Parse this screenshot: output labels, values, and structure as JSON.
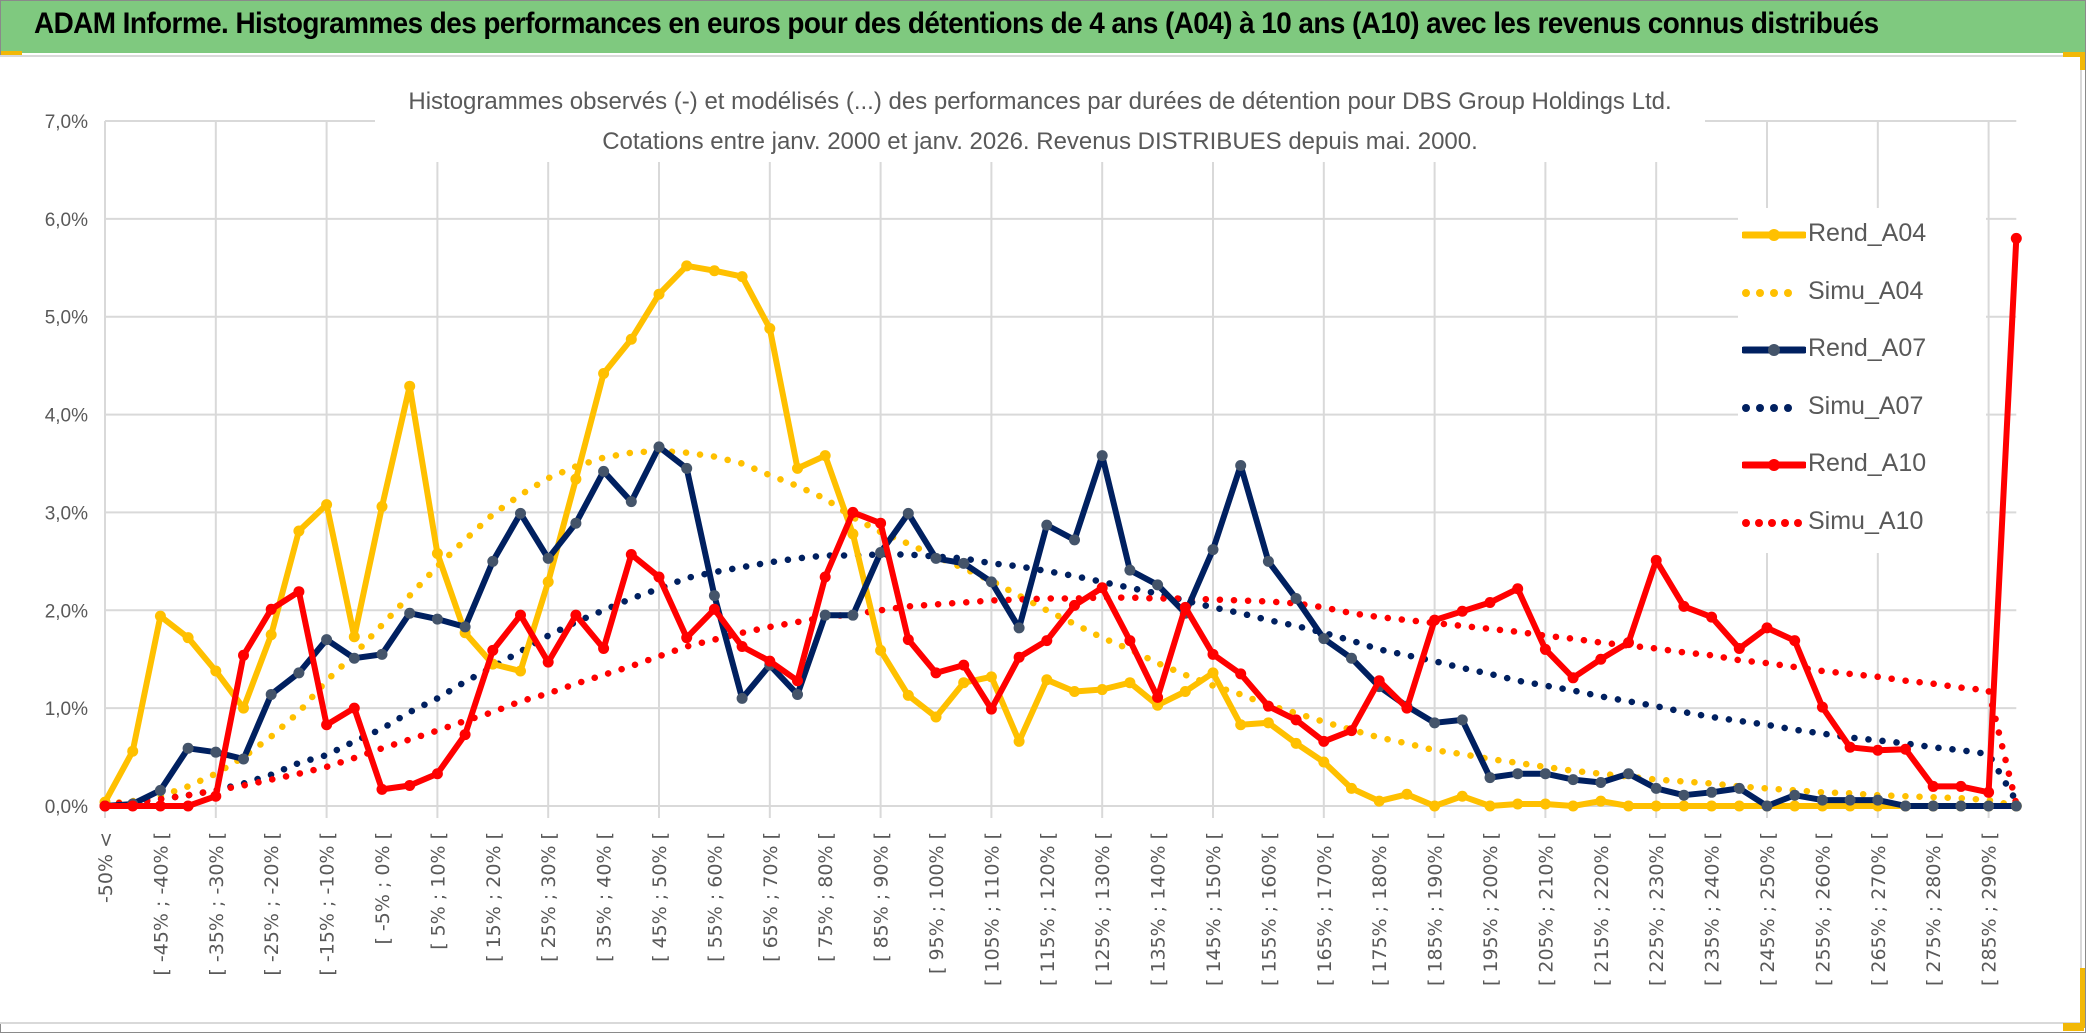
{
  "banner": {
    "title": "ADAM Informe. Histogrammes des performances en euros pour des détentions de 4 ans (A04) à 10 ans (A10) avec les revenus connus distribués"
  },
  "chart_data": {
    "type": "line",
    "title": "Histogrammes observés (-) et modélisés (...) des performances par durées de détention pour DBS Group Holdings Ltd.",
    "subtitle": "Cotations entre janv. 2000 et janv. 2026. Revenus DISTRIBUES depuis mai. 2000.",
    "xlabel": "",
    "ylabel": "",
    "ylim": [
      0,
      7
    ],
    "y_unit": "%",
    "y_ticks": [
      "0,0%",
      "1,0%",
      "2,0%",
      "3,0%",
      "4,0%",
      "5,0%",
      "6,0%",
      "7,0%"
    ],
    "grid": true,
    "legend_position": "right",
    "point_count": 70,
    "x_tick_labels": [
      {
        "index": 0,
        "label": "-50% <"
      },
      {
        "index": 2,
        "label": "[ -45% ; -40% ["
      },
      {
        "index": 4,
        "label": "[ -35% ; -30% ["
      },
      {
        "index": 6,
        "label": "[ -25% ; -20% ["
      },
      {
        "index": 8,
        "label": "[ -15% ; -10% ["
      },
      {
        "index": 10,
        "label": "[ -5% ; 0% ["
      },
      {
        "index": 12,
        "label": "[ 5% ; 10% ["
      },
      {
        "index": 14,
        "label": "[ 15% ; 20% ["
      },
      {
        "index": 16,
        "label": "[ 25% ; 30% ["
      },
      {
        "index": 18,
        "label": "[ 35% ; 40% ["
      },
      {
        "index": 20,
        "label": "[ 45% ; 50% ["
      },
      {
        "index": 22,
        "label": "[ 55% ; 60% ["
      },
      {
        "index": 24,
        "label": "[ 65% ; 70% ["
      },
      {
        "index": 26,
        "label": "[ 75% ; 80% ["
      },
      {
        "index": 28,
        "label": "[ 85% ; 90% ["
      },
      {
        "index": 30,
        "label": "[ 95% ; 100% ["
      },
      {
        "index": 32,
        "label": "[ 105% ; 110% ["
      },
      {
        "index": 34,
        "label": "[ 115% ; 120% ["
      },
      {
        "index": 36,
        "label": "[ 125% ; 130% ["
      },
      {
        "index": 38,
        "label": "[ 135% ; 140% ["
      },
      {
        "index": 40,
        "label": "[ 145% ; 150% ["
      },
      {
        "index": 42,
        "label": "[ 155% ; 160% ["
      },
      {
        "index": 44,
        "label": "[ 165% ; 170% ["
      },
      {
        "index": 46,
        "label": "[ 175% ; 180% ["
      },
      {
        "index": 48,
        "label": "[ 185% ; 190% ["
      },
      {
        "index": 50,
        "label": "[ 195% ; 200% ["
      },
      {
        "index": 52,
        "label": "[ 205% ; 210% ["
      },
      {
        "index": 54,
        "label": "[ 215% ; 220% ["
      },
      {
        "index": 56,
        "label": "[ 225% ; 230% ["
      },
      {
        "index": 58,
        "label": "[ 235% ; 240% ["
      },
      {
        "index": 60,
        "label": "[ 245% ; 250% ["
      },
      {
        "index": 62,
        "label": "[ 255% ; 260% ["
      },
      {
        "index": 64,
        "label": "[ 265% ; 270% ["
      },
      {
        "index": 66,
        "label": "[ 275% ; 280% ["
      },
      {
        "index": 68,
        "label": "[ 285% ; 290% ["
      }
    ],
    "series": [
      {
        "name": "Rend_A04",
        "style": "solid",
        "markers": true,
        "color": "#ffc000",
        "marker_color": "#ffc000",
        "values": [
          0.04,
          0.56,
          1.94,
          1.72,
          1.38,
          1.0,
          1.75,
          2.81,
          3.08,
          1.73,
          3.06,
          4.29,
          2.58,
          1.77,
          1.45,
          1.38,
          2.29,
          3.34,
          4.42,
          4.77,
          5.23,
          5.52,
          5.47,
          5.41,
          4.88,
          3.45,
          3.58,
          2.78,
          1.59,
          1.13,
          0.91,
          1.26,
          1.32,
          0.66,
          1.29,
          1.17,
          1.19,
          1.26,
          1.03,
          1.17,
          1.36,
          0.83,
          0.85,
          0.64,
          0.45,
          0.18,
          0.05,
          0.12,
          0.0,
          0.1,
          0.0,
          0.02,
          0.02,
          0.0,
          0.05,
          0.0,
          0.0,
          0.0,
          0.0,
          0.0,
          0.0,
          0.0,
          0.0,
          0.0,
          0.0,
          0.0,
          0.0,
          0.0,
          0.0,
          0.0
        ]
      },
      {
        "name": "Simu_A04",
        "style": "dotted",
        "markers": false,
        "color": "#ffc000",
        "values": [
          0.02,
          0.05,
          0.1,
          0.2,
          0.33,
          0.5,
          0.71,
          0.96,
          1.28,
          1.55,
          1.85,
          2.15,
          2.45,
          2.72,
          2.98,
          3.18,
          3.35,
          3.47,
          3.56,
          3.61,
          3.63,
          3.61,
          3.57,
          3.5,
          3.38,
          3.27,
          3.14,
          2.95,
          2.8,
          2.68,
          2.55,
          2.43,
          2.3,
          2.15,
          2.0,
          1.86,
          1.72,
          1.6,
          1.46,
          1.34,
          1.23,
          1.14,
          1.03,
          0.95,
          0.86,
          0.78,
          0.7,
          0.64,
          0.57,
          0.53,
          0.48,
          0.44,
          0.4,
          0.36,
          0.33,
          0.3,
          0.27,
          0.25,
          0.23,
          0.2,
          0.18,
          0.16,
          0.14,
          0.13,
          0.11,
          0.1,
          0.09,
          0.08,
          0.06,
          0.0
        ]
      },
      {
        "name": "Rend_A07",
        "style": "solid",
        "markers": true,
        "color": "#002060",
        "marker_color": "#44546a",
        "values": [
          0.0,
          0.02,
          0.16,
          0.59,
          0.55,
          0.48,
          1.14,
          1.36,
          1.7,
          1.51,
          1.55,
          1.97,
          1.91,
          1.83,
          2.5,
          2.99,
          2.53,
          2.89,
          3.42,
          3.11,
          3.67,
          3.45,
          2.15,
          1.1,
          1.44,
          1.14,
          1.95,
          1.95,
          2.59,
          2.99,
          2.53,
          2.48,
          2.29,
          1.82,
          2.87,
          2.72,
          3.58,
          2.41,
          2.26,
          1.97,
          2.62,
          3.48,
          2.5,
          2.12,
          1.71,
          1.51,
          1.22,
          1.02,
          0.85,
          0.88,
          0.29,
          0.33,
          0.33,
          0.27,
          0.24,
          0.33,
          0.18,
          0.11,
          0.14,
          0.18,
          0.0,
          0.11,
          0.06,
          0.06,
          0.06,
          0.0,
          0.0,
          0.0,
          0.0,
          0.0
        ]
      },
      {
        "name": "Simu_A07",
        "style": "dotted",
        "markers": false,
        "color": "#002060",
        "values": [
          0.01,
          0.03,
          0.07,
          0.11,
          0.16,
          0.23,
          0.32,
          0.44,
          0.52,
          0.66,
          0.79,
          0.96,
          1.1,
          1.27,
          1.42,
          1.58,
          1.74,
          1.88,
          2.0,
          2.12,
          2.22,
          2.33,
          2.39,
          2.44,
          2.49,
          2.53,
          2.56,
          2.56,
          2.57,
          2.57,
          2.55,
          2.53,
          2.48,
          2.45,
          2.4,
          2.35,
          2.29,
          2.23,
          2.17,
          2.1,
          2.03,
          1.97,
          1.9,
          1.84,
          1.77,
          1.69,
          1.6,
          1.54,
          1.48,
          1.41,
          1.35,
          1.28,
          1.23,
          1.18,
          1.12,
          1.07,
          1.02,
          0.96,
          0.91,
          0.87,
          0.83,
          0.78,
          0.74,
          0.7,
          0.67,
          0.64,
          0.6,
          0.57,
          0.53,
          0.05
        ]
      },
      {
        "name": "Rend_A10",
        "style": "solid",
        "markers": true,
        "color": "#ff0000",
        "marker_color": "#ff0000",
        "values": [
          0.0,
          0.0,
          0.0,
          0.0,
          0.1,
          1.54,
          2.01,
          2.19,
          0.83,
          1.0,
          0.17,
          0.21,
          0.33,
          0.73,
          1.59,
          1.95,
          1.47,
          1.95,
          1.61,
          2.57,
          2.34,
          1.72,
          2.01,
          1.63,
          1.48,
          1.28,
          2.34,
          3.0,
          2.89,
          1.7,
          1.36,
          1.44,
          0.99,
          1.52,
          1.69,
          2.05,
          2.23,
          1.69,
          1.11,
          2.03,
          1.55,
          1.35,
          1.02,
          0.88,
          0.66,
          0.77,
          1.28,
          1.0,
          1.9,
          1.99,
          2.08,
          2.22,
          1.6,
          1.31,
          1.5,
          1.67,
          2.51,
          2.04,
          1.93,
          1.61,
          1.82,
          1.69,
          1.01,
          0.6,
          0.57,
          0.58,
          0.2,
          0.2,
          0.14,
          5.8
        ]
      },
      {
        "name": "Simu_A10",
        "style": "dotted",
        "markers": false,
        "color": "#ff0000",
        "values": [
          0.02,
          0.04,
          0.07,
          0.11,
          0.16,
          0.21,
          0.27,
          0.33,
          0.4,
          0.49,
          0.59,
          0.68,
          0.77,
          0.87,
          0.96,
          1.07,
          1.15,
          1.25,
          1.34,
          1.43,
          1.53,
          1.63,
          1.7,
          1.77,
          1.83,
          1.88,
          1.93,
          1.96,
          2.0,
          2.04,
          2.06,
          2.08,
          2.1,
          2.11,
          2.12,
          2.12,
          2.13,
          2.13,
          2.12,
          2.12,
          2.11,
          2.1,
          2.09,
          2.07,
          2.03,
          1.97,
          1.93,
          1.9,
          1.87,
          1.84,
          1.81,
          1.78,
          1.74,
          1.71,
          1.67,
          1.64,
          1.61,
          1.57,
          1.54,
          1.49,
          1.46,
          1.42,
          1.38,
          1.35,
          1.32,
          1.28,
          1.25,
          1.21,
          1.18,
          0.02
        ]
      }
    ]
  }
}
